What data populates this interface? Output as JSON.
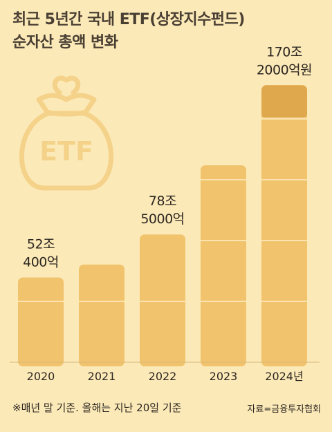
{
  "title": {
    "line1": "최근 5년간 국내 ETF(상장지수펀드)",
    "line2": "순자산 총액 변화"
  },
  "icon": {
    "name": "money-bag-icon",
    "text": "ETF"
  },
  "footnote": "※매년 말 기준. 올해는 지난 20일 기준",
  "source": "자료=금융투자협회",
  "colors": {
    "background": "#fbe9b8",
    "bar": "#f1c36c",
    "bar_highlight": "#e0a84d",
    "icon": "#f5d289"
  },
  "chart_data": {
    "type": "bar",
    "categories": [
      "2020",
      "2021",
      "2022",
      "2023",
      "2024년"
    ],
    "values": [
      52.04,
      60,
      78.5,
      121,
      170.2
    ],
    "unit": "조원",
    "data_labels": [
      [
        "52조",
        "400억"
      ],
      null,
      [
        "78조",
        "5000억"
      ],
      null,
      [
        "170조",
        "2000억원"
      ]
    ],
    "ylim": [
      0,
      175
    ],
    "grid": false,
    "legend": "none"
  }
}
